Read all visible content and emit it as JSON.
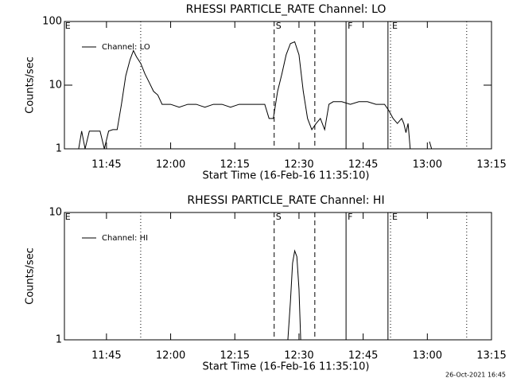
{
  "chart_data": [
    {
      "type": "line",
      "title": "RHESSI PARTICLE_RATE Channel: LO",
      "xlabel": "Start Time (16-Feb-16 11:35:10)",
      "ylabel": "Counts/sec",
      "log": true,
      "xlim": [
        695.17,
        795
      ],
      "xticks": [
        {
          "value": 705,
          "label": "11:45"
        },
        {
          "value": 720,
          "label": "12:00"
        },
        {
          "value": 735,
          "label": "12:15"
        },
        {
          "value": 750,
          "label": "12:30"
        },
        {
          "value": 765,
          "label": "12:45"
        },
        {
          "value": 780,
          "label": "13:00"
        },
        {
          "value": 795,
          "label": "13:15"
        }
      ],
      "ylim": [
        1,
        100
      ],
      "yticks": [
        1,
        10,
        100
      ],
      "markers": [
        {
          "x": 695.3,
          "label": "E"
        },
        {
          "x": 713,
          "style": "dotted"
        },
        {
          "x": 744.2,
          "label": "S",
          "style": "dashed"
        },
        {
          "x": 753.7,
          "style": "dashed"
        },
        {
          "x": 761,
          "label": "F",
          "style": "solid"
        },
        {
          "x": 770.8,
          "style": "solid"
        },
        {
          "x": 771.4,
          "label": "E",
          "style": "dotted"
        },
        {
          "x": 789.2,
          "style": "dotted"
        }
      ],
      "series": [
        {
          "name": "Channel: LO",
          "color": "#000000",
          "x": [
            698.5,
            699.2,
            700,
            701,
            702,
            703.5,
            704.5,
            705.5,
            706.5,
            707.5,
            708.5,
            709.5,
            710.5,
            711.3,
            712,
            713,
            714,
            715,
            716,
            717,
            718,
            720,
            722,
            724,
            726,
            728,
            730,
            732,
            734,
            736,
            738,
            740,
            742,
            743,
            744,
            745,
            746,
            747,
            748,
            749,
            750,
            751,
            752,
            753,
            754,
            755,
            756,
            757,
            758,
            760,
            762,
            764,
            766,
            768,
            770,
            771,
            772,
            773,
            774,
            774.5,
            775,
            775.5,
            776,
            777,
            780.5,
            781
          ],
          "values": [
            1,
            1.9,
            1,
            1.9,
            1.9,
            1.9,
            1,
            1.9,
            2,
            2,
            5,
            14,
            25,
            35,
            28,
            22,
            15,
            11,
            8,
            7,
            5,
            5,
            4.5,
            5,
            5,
            4.5,
            5,
            5,
            4.5,
            5,
            5,
            5,
            5,
            3,
            3,
            8,
            15,
            30,
            45,
            48,
            30,
            8,
            3,
            2,
            2.5,
            3,
            2,
            5,
            5.5,
            5.5,
            5,
            5.5,
            5.5,
            5,
            5,
            4,
            3,
            2.5,
            3,
            2.5,
            1.8,
            2.5,
            1,
            null,
            1.3,
            1
          ]
        }
      ]
    },
    {
      "type": "line",
      "title": "RHESSI PARTICLE_RATE Channel: HI",
      "xlabel": "Start Time (16-Feb-16 11:35:10)",
      "ylabel": "Counts/sec",
      "log": true,
      "xlim": [
        695.17,
        795
      ],
      "xticks": [
        {
          "value": 705,
          "label": "11:45"
        },
        {
          "value": 720,
          "label": "12:00"
        },
        {
          "value": 735,
          "label": "12:15"
        },
        {
          "value": 750,
          "label": "12:30"
        },
        {
          "value": 765,
          "label": "12:45"
        },
        {
          "value": 780,
          "label": "13:00"
        },
        {
          "value": 795,
          "label": "13:15"
        }
      ],
      "ylim": [
        1,
        10
      ],
      "yticks": [
        1,
        10
      ],
      "markers": [
        {
          "x": 695.3,
          "label": "E"
        },
        {
          "x": 713,
          "style": "dotted"
        },
        {
          "x": 744.2,
          "label": "S",
          "style": "dashed"
        },
        {
          "x": 753.7,
          "style": "dashed"
        },
        {
          "x": 761,
          "label": "F",
          "style": "solid"
        },
        {
          "x": 770.8,
          "style": "solid"
        },
        {
          "x": 771.4,
          "label": "E",
          "style": "dotted"
        },
        {
          "x": 789.2,
          "style": "dotted"
        }
      ],
      "series": [
        {
          "name": "Channel: HI",
          "color": "#000000",
          "x": [
            747.4,
            748,
            748.5,
            749,
            749.5,
            750,
            750.4
          ],
          "values": [
            1,
            2,
            4,
            5,
            4.5,
            2.5,
            1
          ]
        }
      ]
    }
  ],
  "footer": "26-Oct-2021 16:45"
}
